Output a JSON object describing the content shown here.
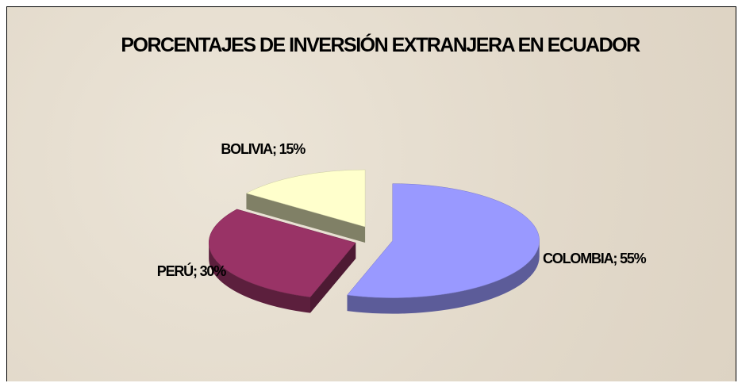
{
  "chart_data": {
    "type": "pie",
    "title": "PORCENTAJES DE INVERSIÓN EXTRANJERA EN ECUADOR",
    "categories": [
      "COLOMBIA",
      "PERÚ",
      "BOLIVIA"
    ],
    "values": [
      55,
      30,
      15
    ],
    "value_labels": [
      "COLOMBIA; 55%",
      "PERÚ; 30%",
      "BOLIVIA; 15%"
    ],
    "colors": [
      "#9999ff",
      "#993366",
      "#ffffcc"
    ]
  }
}
